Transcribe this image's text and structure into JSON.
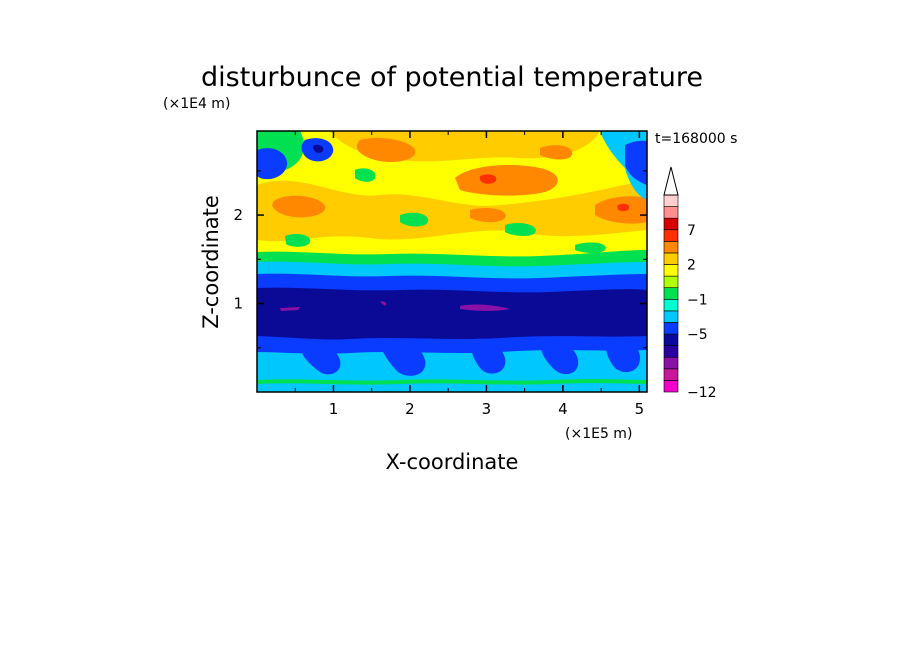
{
  "chart_data": {
    "type": "heatmap",
    "title": "disturbunce of potential temperature",
    "xlabel": "X-coordinate",
    "ylabel": "Z-coordinate",
    "x_unit": "(×1E5 m)",
    "y_unit": "(×1E4 m)",
    "time_label": "t=168000 s",
    "xlim": [
      0,
      5.1
    ],
    "ylim": [
      0,
      2.95
    ],
    "x_ticks": [
      "1",
      "2",
      "3",
      "4",
      "5"
    ],
    "y_ticks": [
      "1",
      "2"
    ],
    "colorbar": {
      "labels": [
        "7",
        "2",
        "−1",
        "−5",
        "−12"
      ],
      "levels": [
        -12,
        -9,
        -7,
        -5,
        -3,
        -2,
        -1,
        0,
        1,
        2,
        3,
        5,
        7,
        9
      ],
      "colors": [
        "#f000c8",
        "#c8189a",
        "#8a10a6",
        "#2a00a0",
        "#0a0a96",
        "#0a3cff",
        "#00c8ff",
        "#00ffd0",
        "#00e050",
        "#b0ff00",
        "#ffff00",
        "#ffcc00",
        "#ff8800",
        "#ff3000",
        "#d40000",
        "#ff9090",
        "#ffd0d0"
      ]
    },
    "bands": [
      {
        "z_range": [
          0.0,
          0.05
        ],
        "value": "−1",
        "color": "#00c8ff"
      },
      {
        "z_range": [
          0.05,
          0.55
        ],
        "value": "−2 / −1",
        "color": "#00c8ff"
      },
      {
        "z_range": [
          0.55,
          0.9
        ],
        "value": "−3",
        "color": "#0a3cff"
      },
      {
        "z_range": [
          0.9,
          1.2
        ],
        "value": "−5",
        "color": "#0a0a96"
      },
      {
        "z_range": [
          1.2,
          1.35
        ],
        "value": "−3",
        "color": "#0a3cff"
      },
      {
        "z_range": [
          1.35,
          1.45
        ],
        "value": "−1",
        "color": "#00c8ff"
      },
      {
        "z_range": [
          1.45,
          2.95
        ],
        "value": "1 / 2",
        "color": "#ffff00"
      }
    ]
  }
}
